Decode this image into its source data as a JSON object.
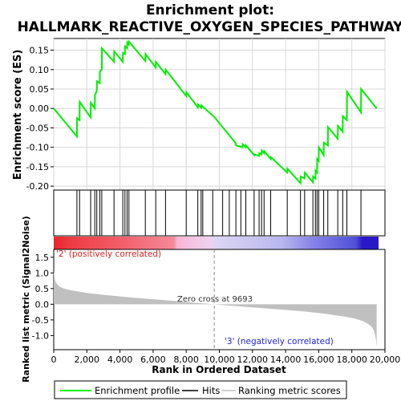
{
  "title_line1": "Enrichment plot:",
  "title_line2": "HALLMARK_REACTIVE_OXYGEN_SPECIES_PATHWAY",
  "chart_data": [
    {
      "type": "line",
      "panel": "enrichment",
      "ylabel": "Enrichment score (ES)",
      "ylim": [
        -0.21,
        0.18
      ],
      "yticks": [
        0.15,
        0.1,
        0.05,
        0.0,
        -0.05,
        -0.1,
        -0.15,
        -0.2
      ],
      "ytick_labels": [
        "0.15",
        "0.10",
        "0.05",
        "0.00",
        "-0.05",
        "-0.10",
        "-0.15",
        "-0.20"
      ],
      "xlim": [
        0,
        20000
      ],
      "grid": true,
      "series": [
        {
          "name": "Enrichment profile",
          "color": "#00ee00",
          "x": [
            0,
            1400,
            1410,
            1560,
            1570,
            2230,
            2240,
            2480,
            2490,
            2600,
            2610,
            2780,
            2790,
            2900,
            2910,
            3640,
            3650,
            4170,
            4180,
            4300,
            4310,
            4430,
            4440,
            4530,
            4540,
            5530,
            5540,
            6160,
            6170,
            6750,
            6760,
            8000,
            8010,
            8700,
            8710,
            8900,
            8910,
            9700,
            11000,
            11010,
            11400,
            11410,
            11600,
            11610,
            12100,
            12110,
            12400,
            12410,
            12550,
            12560,
            12700,
            12710,
            13100,
            13110,
            14100,
            14110,
            14900,
            14910,
            15150,
            15160,
            15650,
            15660,
            15800,
            15810,
            15900,
            15910,
            16000,
            16010,
            16300,
            16310,
            16550,
            16560,
            17150,
            17160,
            17450,
            17460,
            17700,
            17710,
            18550,
            18560,
            19500
          ],
          "y": [
            0.0,
            -0.072,
            -0.025,
            -0.03,
            0.017,
            -0.023,
            0.015,
            0.0,
            0.035,
            0.045,
            0.07,
            0.065,
            0.095,
            0.1,
            0.155,
            0.12,
            0.147,
            0.12,
            0.143,
            0.14,
            0.16,
            0.155,
            0.17,
            0.165,
            0.172,
            0.122,
            0.14,
            0.105,
            0.12,
            0.088,
            0.1,
            0.032,
            0.042,
            0.003,
            0.01,
            0.002,
            0.008,
            -0.022,
            -0.09,
            -0.095,
            -0.1,
            -0.092,
            -0.1,
            -0.095,
            -0.12,
            -0.118,
            -0.122,
            -0.115,
            -0.118,
            -0.108,
            -0.115,
            -0.11,
            -0.13,
            -0.125,
            -0.165,
            -0.155,
            -0.192,
            -0.175,
            -0.18,
            -0.165,
            -0.19,
            -0.175,
            -0.18,
            -0.16,
            -0.165,
            -0.13,
            -0.135,
            -0.1,
            -0.12,
            -0.088,
            -0.095,
            -0.048,
            -0.078,
            -0.045,
            -0.06,
            -0.02,
            -0.03,
            0.043,
            -0.01,
            0.05,
            0.0
          ]
        }
      ]
    },
    {
      "type": "scatter",
      "panel": "hits",
      "series": [
        {
          "name": "Hits",
          "color": "#000000",
          "x": [
            1400,
            1560,
            2230,
            2480,
            2600,
            2780,
            2900,
            3640,
            4170,
            4300,
            4430,
            4540,
            5530,
            6160,
            6750,
            8000,
            8700,
            8900,
            9000,
            9600,
            10200,
            10600,
            11000,
            11300,
            11600,
            12100,
            12400,
            12550,
            12700,
            13100,
            14100,
            14900,
            15150,
            15650,
            15800,
            15900,
            16000,
            16300,
            16550,
            17150,
            17450,
            17700,
            18550
          ]
        }
      ]
    },
    {
      "type": "area",
      "panel": "ranked-metric",
      "ylabel": "Ranked list metric (Signal2Noise)",
      "xlabel": "Rank in Ordered Dataset",
      "ylim": [
        -1.45,
        1.75
      ],
      "yticks": [
        1.5,
        1.0,
        0.5,
        0.0,
        -0.5,
        -1.0
      ],
      "ytick_labels": [
        "1.5",
        "1.0",
        "0.5",
        "0.0",
        "-0.5",
        "-1.0"
      ],
      "xlim": [
        0,
        20000
      ],
      "xticks": [
        0,
        2000,
        4000,
        6000,
        8000,
        10000,
        12000,
        14000,
        16000,
        18000,
        20000
      ],
      "xtick_labels": [
        "0",
        "2,000",
        "4,000",
        "6,000",
        "8,000",
        "10,000",
        "12,000",
        "14,000",
        "16,000",
        "18,000",
        "20,000"
      ],
      "x": [
        0,
        100,
        300,
        600,
        1000,
        2000,
        3000,
        4000,
        5000,
        6000,
        7000,
        8000,
        9000,
        9693,
        10500,
        11500,
        12500,
        13500,
        14500,
        15500,
        16500,
        17500,
        18200,
        18700,
        19000,
        19200,
        19350,
        19450,
        19500
      ],
      "values": [
        1.05,
        0.72,
        0.58,
        0.5,
        0.45,
        0.36,
        0.3,
        0.25,
        0.2,
        0.16,
        0.12,
        0.07,
        0.03,
        0.0,
        -0.04,
        -0.08,
        -0.12,
        -0.16,
        -0.2,
        -0.25,
        -0.31,
        -0.39,
        -0.46,
        -0.55,
        -0.63,
        -0.72,
        -0.85,
        -1.1,
        -1.35
      ],
      "zero_cross_label": "Zero cross at 9693",
      "positive_label": "'2' (positively correlated)",
      "negative_label": "'3' (negatively correlated)"
    }
  ],
  "legend": {
    "items": [
      {
        "label": "Enrichment profile",
        "color": "#00ee00"
      },
      {
        "label": "Hits",
        "color": "#000000"
      },
      {
        "label": "Ranking metric scores",
        "color": "#c0c0c0"
      }
    ]
  }
}
